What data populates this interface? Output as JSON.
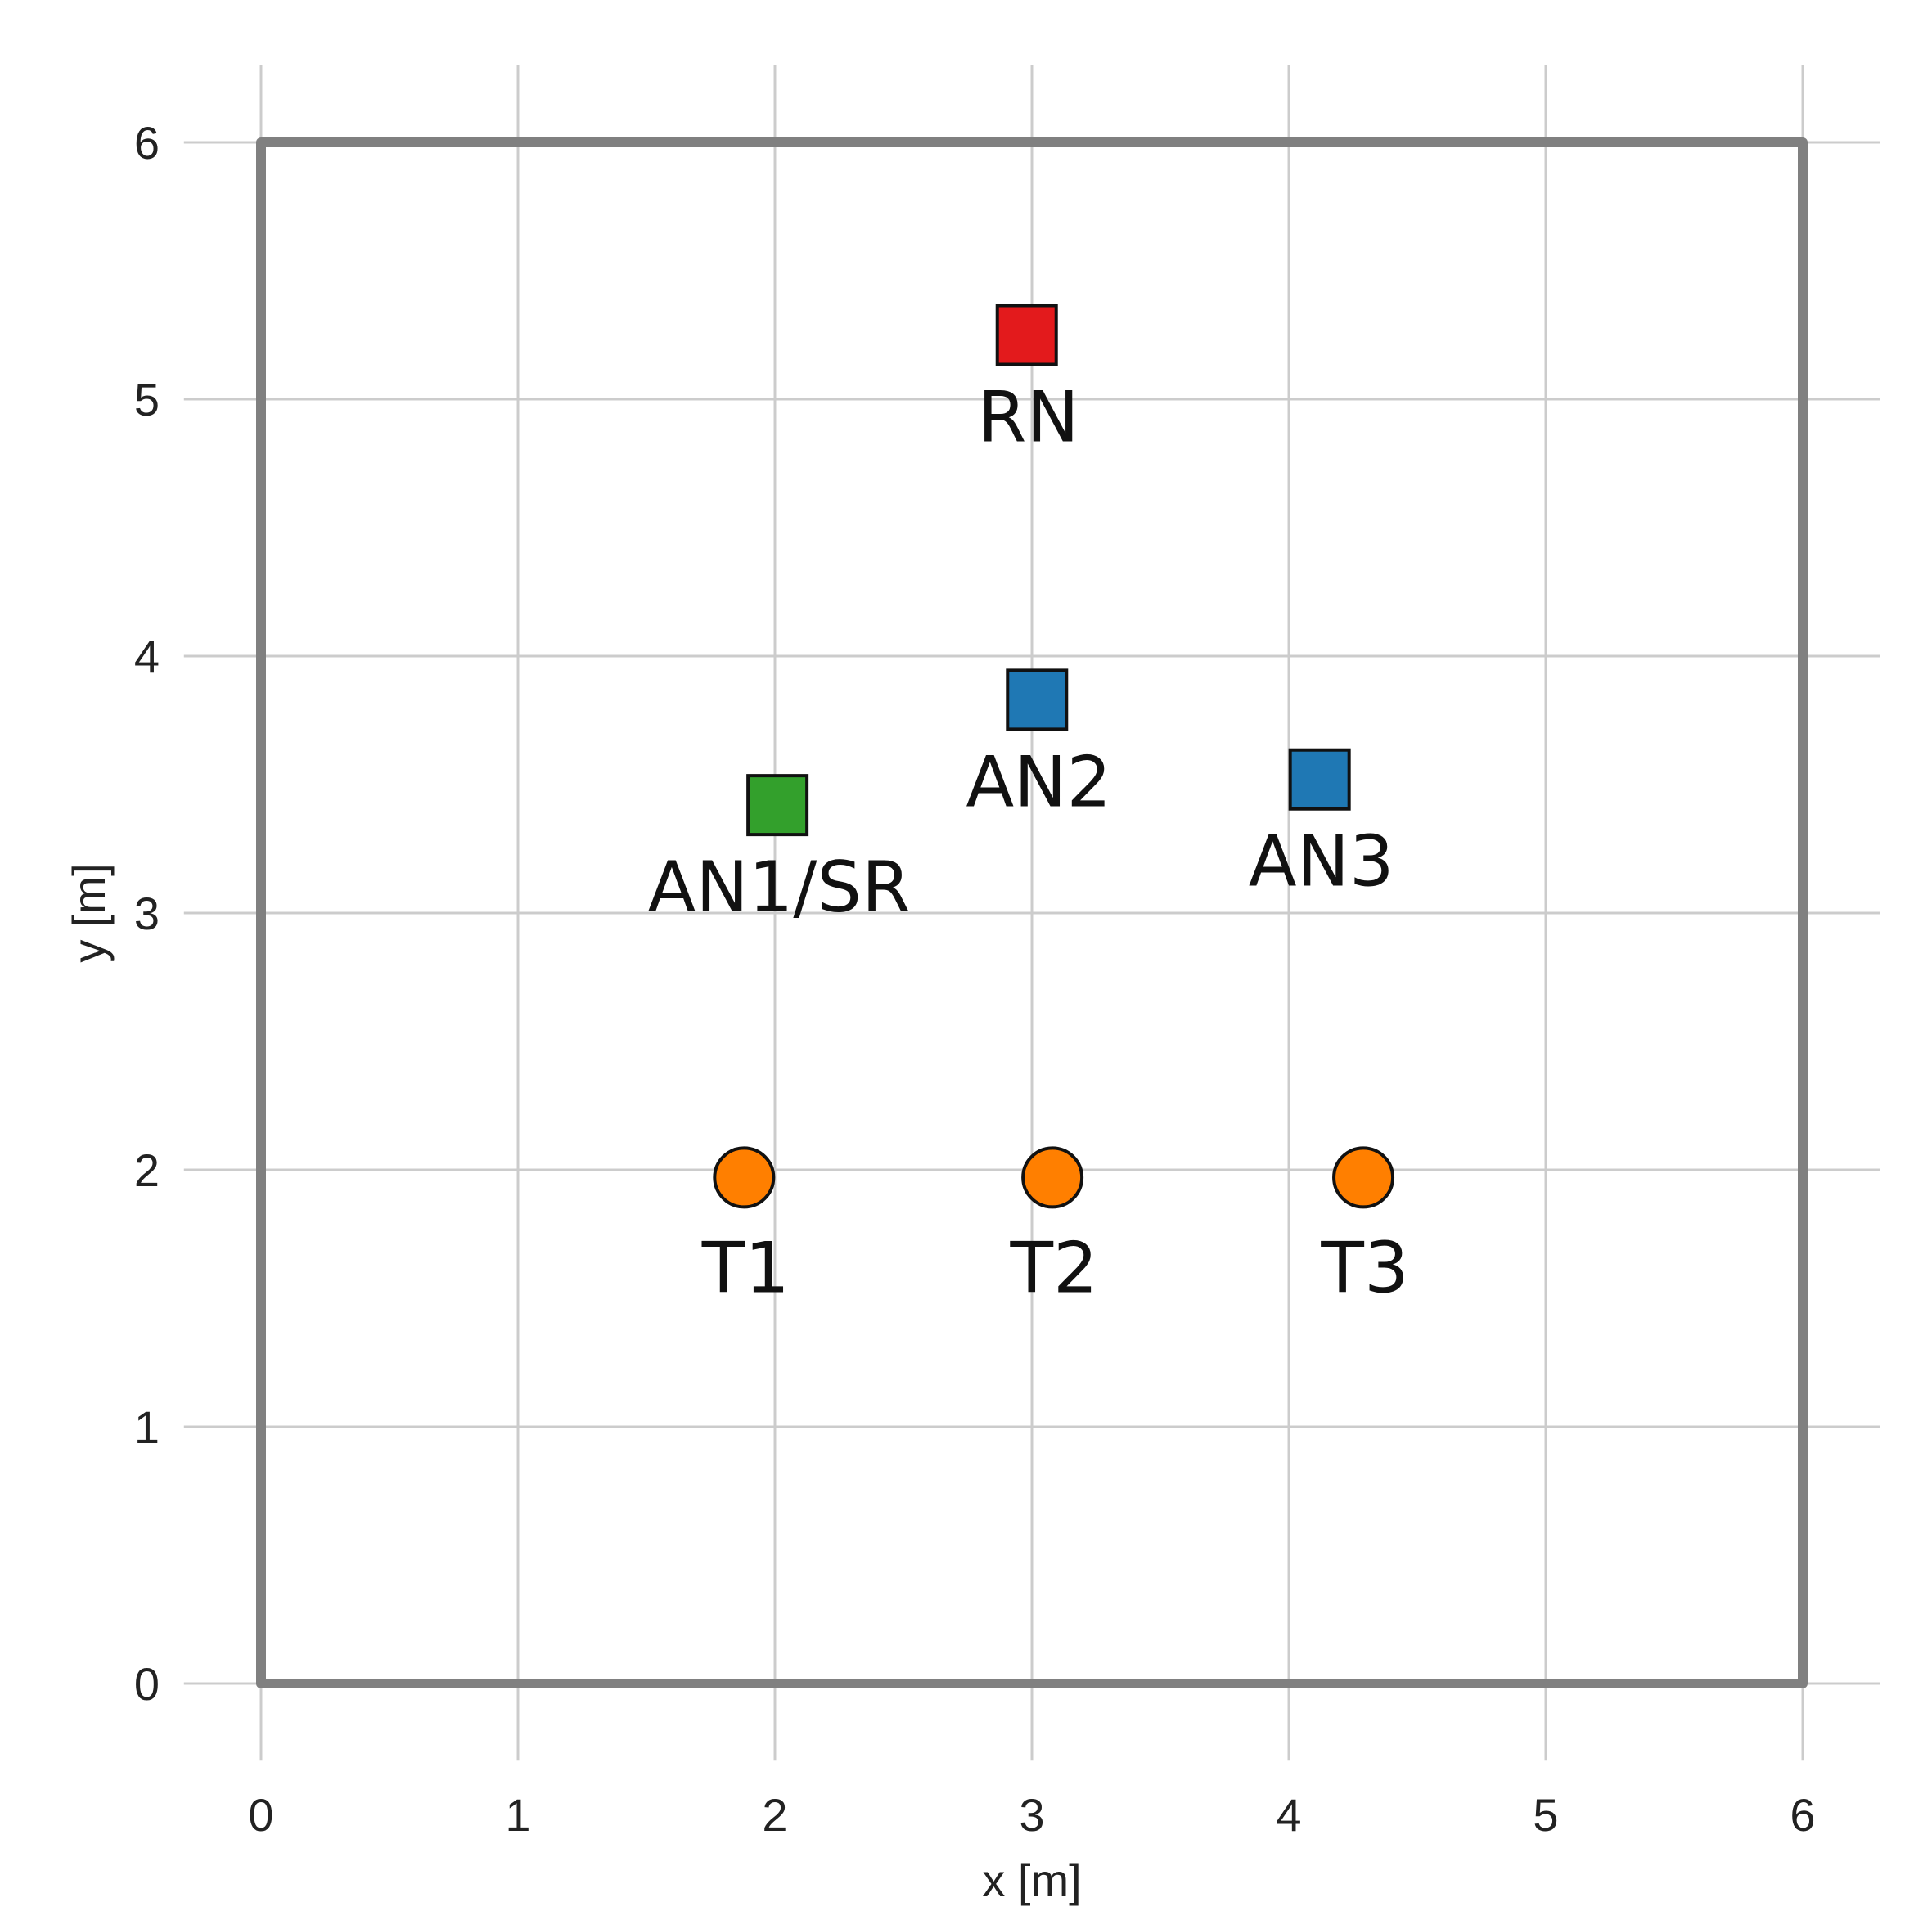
{
  "chart_data": {
    "type": "scatter",
    "xlabel": "x [m]",
    "ylabel": "y [m]",
    "xlim": [
      -0.3,
      6.3
    ],
    "ylim": [
      -0.3,
      6.3
    ],
    "xticks": [
      "0",
      "1",
      "2",
      "3",
      "4",
      "5",
      "6"
    ],
    "yticks": [
      "0",
      "1",
      "2",
      "3",
      "4",
      "5",
      "6"
    ],
    "grid": true,
    "boundary": {
      "x": [
        0,
        6
      ],
      "y": [
        0,
        6
      ],
      "color": "#808080"
    },
    "points": [
      {
        "label": "RN",
        "x": 2.98,
        "y": 5.25,
        "marker": "square",
        "color": "#e31a1c"
      },
      {
        "label": "AN2",
        "x": 3.02,
        "y": 3.83,
        "marker": "square",
        "color": "#1f78b4"
      },
      {
        "label": "AN3",
        "x": 4.12,
        "y": 3.52,
        "marker": "square",
        "color": "#1f78b4"
      },
      {
        "label": "AN1/SR",
        "x": 2.01,
        "y": 3.42,
        "marker": "square",
        "color": "#33a02c"
      },
      {
        "label": "T1",
        "x": 1.88,
        "y": 1.97,
        "marker": "circle",
        "color": "#ff7f00"
      },
      {
        "label": "T2",
        "x": 3.08,
        "y": 1.97,
        "marker": "circle",
        "color": "#ff7f00"
      },
      {
        "label": "T3",
        "x": 4.29,
        "y": 1.97,
        "marker": "circle",
        "color": "#ff7f00"
      }
    ]
  }
}
